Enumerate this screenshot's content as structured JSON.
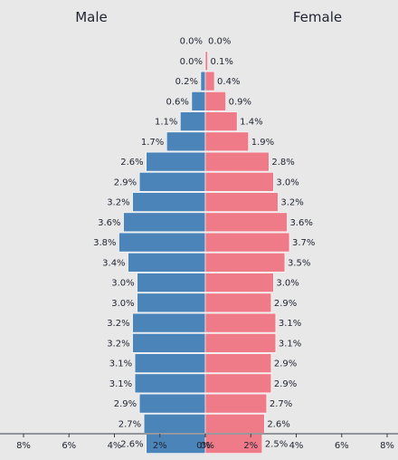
{
  "chart_data": {
    "type": "bar",
    "orientation": "horizontal-pyramid",
    "left_title": "Male",
    "right_title": "Female",
    "xlim": [
      0,
      8
    ],
    "x_ticks": [
      {
        "value": 8,
        "label": "8%"
      },
      {
        "value": 6,
        "label": "6%"
      },
      {
        "value": 4,
        "label": "4%"
      },
      {
        "value": 2,
        "label": "2%"
      },
      {
        "value": 0,
        "label": "0%"
      }
    ],
    "series": [
      {
        "name": "Male",
        "color": "#4a84b8",
        "values": [
          0.0,
          0.0,
          0.2,
          0.6,
          1.1,
          1.7,
          2.6,
          2.9,
          3.2,
          3.6,
          3.8,
          3.4,
          3.0,
          3.0,
          3.2,
          3.2,
          3.1,
          3.1,
          2.9,
          2.7,
          2.6
        ],
        "labels": [
          "0.0%",
          "0.0%",
          "0.2%",
          "0.6%",
          "1.1%",
          "1.7%",
          "2.6%",
          "2.9%",
          "3.2%",
          "3.6%",
          "3.8%",
          "3.4%",
          "3.0%",
          "3.0%",
          "3.2%",
          "3.2%",
          "3.1%",
          "3.1%",
          "2.9%",
          "2.7%",
          "2.6%"
        ]
      },
      {
        "name": "Female",
        "color": "#f07b88",
        "values": [
          0.0,
          0.1,
          0.4,
          0.9,
          1.4,
          1.9,
          2.8,
          3.0,
          3.2,
          3.6,
          3.7,
          3.5,
          3.0,
          2.9,
          3.1,
          3.1,
          2.9,
          2.9,
          2.7,
          2.6,
          2.5
        ],
        "labels": [
          "0.0%",
          "0.1%",
          "0.4%",
          "0.9%",
          "1.4%",
          "1.9%",
          "2.8%",
          "3.0%",
          "3.2%",
          "3.6%",
          "3.7%",
          "3.5%",
          "3.0%",
          "2.9%",
          "3.1%",
          "3.1%",
          "2.9%",
          "2.9%",
          "2.7%",
          "2.6%",
          "2.5%"
        ]
      }
    ],
    "grid": false,
    "legend": "none"
  }
}
